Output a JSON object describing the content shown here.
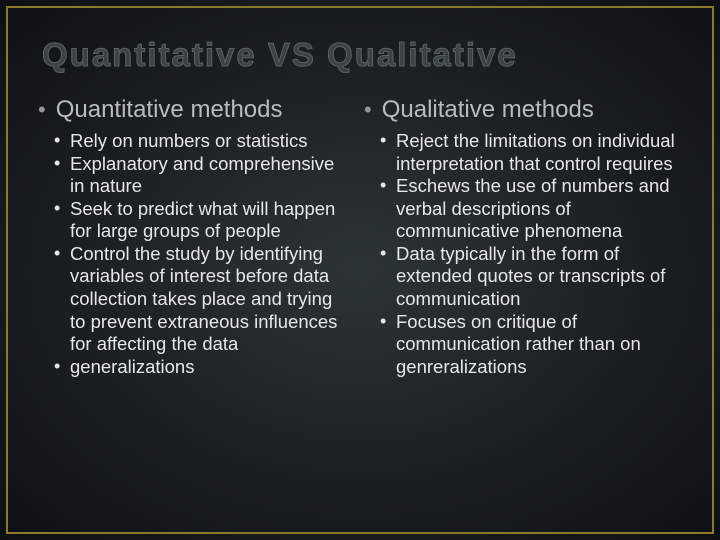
{
  "slide": {
    "title": "Quantitative VS Qualitative",
    "background_center": "#2d3438",
    "background_edge": "#0d1013",
    "frame_color": "#8a7a2a",
    "title_color": "#3b4246",
    "title_fontsize": 33,
    "header_color": "#b8bcbe",
    "header_fontsize": 24,
    "body_color": "#e6e7e8",
    "body_fontsize": 18.5,
    "bullet_color": "#8f9598",
    "columns": [
      {
        "header": "Quantitative methods",
        "items": [
          "Rely on numbers or statistics",
          "Explanatory and comprehensive in nature",
          "Seek to predict what will happen for large groups of people",
          "Control the study by identifying variables of interest before data collection takes place and trying to prevent extraneous influences for affecting the data",
          "generalizations"
        ]
      },
      {
        "header": "Qualitative methods",
        "items": [
          "Reject the limitations on individual interpretation that control requires",
          "Eschews the use of numbers and verbal descriptions of communicative phenomena",
          "Data typically in the form of extended quotes or transcripts of communication",
          "Focuses on critique of communication rather than on genreralizations"
        ]
      }
    ]
  }
}
